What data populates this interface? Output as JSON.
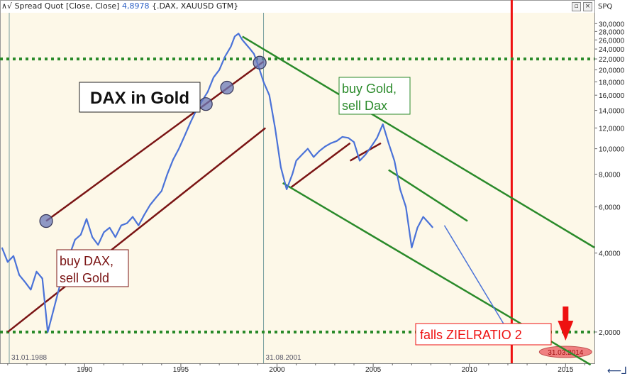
{
  "header": {
    "title": "Spread Quot [Close, Close]",
    "value": "4,8978",
    "instruments": "{.DAX, XAUUSD GTM}",
    "scale_label": "SPQ"
  },
  "colors": {
    "background": "#fdf8e8",
    "line": "#4a72d8",
    "green": "#2a8a2a",
    "dark_red": "#7a1414",
    "red": "#ee1111",
    "pink": "#f08080"
  },
  "chart_data": {
    "type": "line",
    "y_scale": "log",
    "ylim": [
      1500,
      31000
    ],
    "xlim": [
      1985.6,
      2016.5
    ],
    "x_ticks": [
      1990,
      1995,
      2000,
      2005,
      2010,
      2015
    ],
    "x_tick_labels": [
      "1990",
      "1995",
      "2000",
      "2005",
      "2010",
      "2015"
    ],
    "y_ticks": [
      2000,
      4000,
      6000,
      8000,
      10000,
      12000,
      14000,
      16000,
      18000,
      20000,
      22000,
      24000,
      26000,
      28000,
      30000
    ],
    "y_tick_labels": [
      "2,0000",
      "4,0000",
      "6,0000",
      "8,0000",
      "10,0000",
      "12,0000",
      "14,0000",
      "16,0000",
      "18,0000",
      "20,0000",
      "22,0000",
      "24,0000",
      "26,0000",
      "28,0000",
      "30,0000"
    ],
    "series": [
      {
        "x": [
          1985.7,
          1986.0,
          1986.3,
          1986.6,
          1986.9,
          1987.2,
          1987.5,
          1987.8,
          1988.08,
          1988.3,
          1988.6,
          1988.9,
          1989.2,
          1989.5,
          1989.8,
          1990.1,
          1990.4,
          1990.7,
          1991.0,
          1991.3,
          1991.6,
          1991.9,
          1992.2,
          1992.5,
          1992.8,
          1993.1,
          1993.4,
          1993.7,
          1994.0,
          1994.3,
          1994.6,
          1994.9,
          1995.2,
          1995.5,
          1995.8,
          1996.1,
          1996.4,
          1996.7,
          1997.0,
          1997.3,
          1997.6,
          1997.8,
          1998.0,
          1998.2,
          1998.4,
          1998.6,
          1998.8,
          1999.0,
          1999.3,
          1999.6,
          1999.9,
          2000.2,
          2000.5,
          2000.8,
          2001.0,
          2001.3,
          2001.6,
          2001.9,
          2002.2,
          2002.5,
          2002.8,
          2003.1,
          2003.4,
          2003.7,
          2004.0,
          2004.3,
          2004.6,
          2004.9,
          2005.2,
          2005.5,
          2005.8,
          2006.1,
          2006.4,
          2006.7,
          2007.0,
          2007.3,
          2007.6,
          2007.9,
          2008.1
        ],
        "y": [
          4200,
          3700,
          3900,
          3300,
          3100,
          2900,
          3400,
          3200,
          2000,
          2300,
          2800,
          3400,
          3900,
          4500,
          4700,
          5400,
          4600,
          4300,
          4800,
          5000,
          4600,
          5100,
          5200,
          5500,
          5100,
          5600,
          6100,
          6500,
          6900,
          8000,
          9100,
          10000,
          11200,
          12600,
          14000,
          15200,
          16500,
          18700,
          20000,
          22500,
          24500,
          26800,
          27500,
          26000,
          25000,
          24000,
          23000,
          21000,
          18000,
          16000,
          12000,
          8500,
          7000,
          8000,
          9000,
          9500,
          10000,
          9300,
          9800,
          10200,
          10500,
          10700,
          11100,
          11000,
          10600,
          9000,
          9500,
          10200,
          11000,
          12400,
          10500,
          9000,
          7000,
          6000,
          4200,
          5000,
          5500,
          5200,
          5000
        ]
      }
    ],
    "lines": [
      {
        "kind": "support",
        "color": "dark_red",
        "x": [
          1986.0,
          1999.4
        ],
        "y": [
          2000,
          12000
        ]
      },
      {
        "kind": "resistance",
        "color": "dark_red",
        "x": [
          1988.0,
          1999.3
        ],
        "y": [
          5300,
          21500
        ]
      },
      {
        "kind": "short",
        "color": "dark_red",
        "x": [
          2000.7,
          2003.8
        ],
        "y": [
          7100,
          10500
        ]
      },
      {
        "kind": "short",
        "color": "dark_red",
        "x": [
          2003.8,
          2005.4
        ],
        "y": [
          9000,
          10500
        ]
      },
      {
        "kind": "channel_top",
        "color": "green",
        "x": [
          1998.2,
          2016.5
        ],
        "y": [
          26800,
          4200
        ]
      },
      {
        "kind": "channel_bottom",
        "color": "green",
        "x": [
          2000.3,
          2016.3
        ],
        "y": [
          7400,
          1500
        ]
      },
      {
        "kind": "channel_mid",
        "color": "green",
        "x": [
          2005.8,
          2009.9
        ],
        "y": [
          8300,
          5300
        ]
      }
    ],
    "arrow_line": {
      "x": [
        2008.7,
        2012.0
      ],
      "y": [
        5100,
        2020
      ]
    },
    "markers": [
      {
        "x": 1988.0,
        "y": 5300
      },
      {
        "x": 1996.3,
        "y": 14800
      },
      {
        "x": 1997.4,
        "y": 17100
      },
      {
        "x": 1999.1,
        "y": 21300
      }
    ],
    "horizontal_levels": [
      {
        "y": 22000,
        "style": "dotted",
        "color": "green"
      },
      {
        "y": 2000,
        "style": "dotted",
        "color": "green"
      }
    ],
    "vertical_markers": [
      {
        "x": 1986.08,
        "label": "31.01.1988",
        "color": "gray"
      },
      {
        "x": 1999.3,
        "label": "31.08.2001",
        "color": "gray"
      },
      {
        "x": 2012.2,
        "label": "",
        "color": "red"
      },
      {
        "x": 2015.0,
        "label": "31.03.2014",
        "color": "pink"
      }
    ],
    "annotations": [
      {
        "id": "dax_in_gold",
        "text": "DAX in Gold"
      },
      {
        "id": "buy_dax",
        "lines": [
          "buy DAX,",
          "sell Gold"
        ]
      },
      {
        "id": "buy_gold",
        "lines": [
          "buy Gold,",
          "sell Dax"
        ]
      },
      {
        "id": "falls",
        "text": "falls ZIELRATIO 2"
      }
    ]
  }
}
